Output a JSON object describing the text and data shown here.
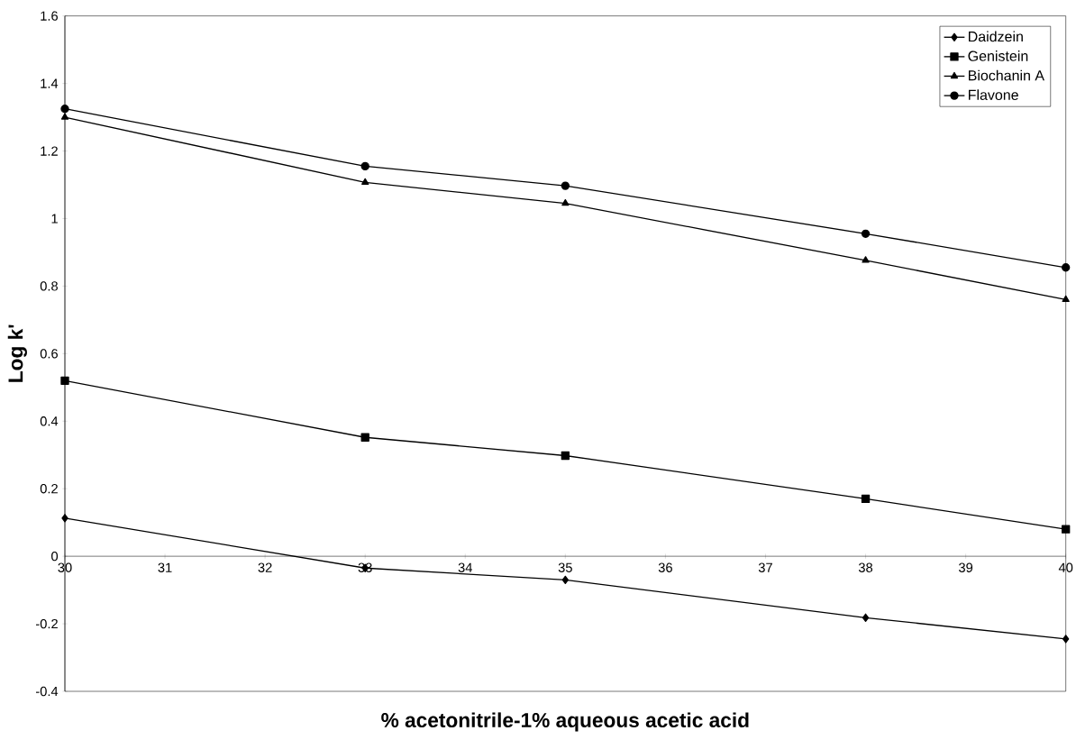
{
  "chart_data": {
    "type": "line",
    "xlabel": "% acetonitrile-1% aqueous acetic acid",
    "ylabel": "Log k'",
    "x": [
      30,
      33,
      35,
      38,
      40
    ],
    "series": [
      {
        "name": "Daidzein",
        "color": "#000000",
        "marker": "diamond",
        "values": [
          0.113,
          -0.035,
          -0.07,
          -0.182,
          -0.245
        ]
      },
      {
        "name": "Genistein",
        "color": "#000000",
        "marker": "square",
        "values": [
          0.52,
          0.352,
          0.298,
          0.17,
          0.08
        ]
      },
      {
        "name": "Biochanin A",
        "color": "#000000",
        "marker": "triangle",
        "values": [
          1.3,
          1.107,
          1.045,
          0.876,
          0.76
        ]
      },
      {
        "name": "Flavone",
        "color": "#000000",
        "marker": "circle",
        "values": [
          1.325,
          1.155,
          1.097,
          0.955,
          0.855
        ]
      }
    ],
    "xlim": [
      30,
      40
    ],
    "xticks": [
      30,
      31,
      32,
      33,
      34,
      35,
      36,
      37,
      38,
      39,
      40
    ],
    "ylim": [
      -0.4,
      1.6
    ],
    "yticks": [
      -0.4,
      -0.2,
      0,
      0.2,
      0.4,
      0.6,
      0.8,
      1,
      1.2,
      1.4,
      1.6
    ],
    "grid": false,
    "legend": "top right",
    "line_style": "solid"
  }
}
